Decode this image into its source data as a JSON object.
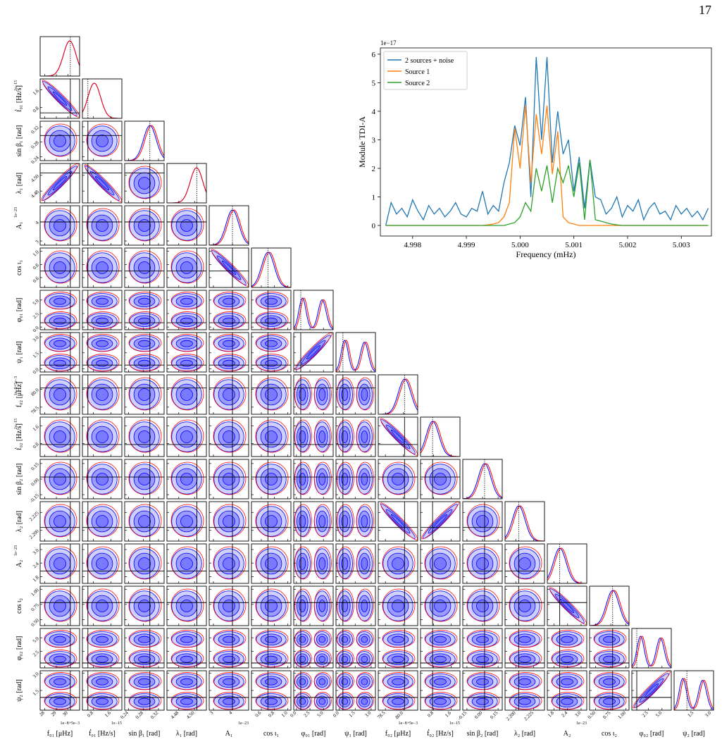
{
  "page_number": "17",
  "chart_data": [
    {
      "type": "line",
      "offset_label": "1e−17",
      "x_label": "Frequency (mHz)",
      "y_label": "Module TDI-A",
      "legend": "upper left",
      "xlim": [
        4.9974,
        5.00356
      ],
      "ylim": [
        -0.37,
        6.22
      ],
      "xticks": [
        4.998,
        4.999,
        {
          "value": 5.0,
          "label": "5.000"
        },
        5.001,
        5.002,
        5.003
      ],
      "yticks": [
        0,
        1,
        2,
        3,
        4,
        5,
        6
      ],
      "x": [
        4.9975,
        4.9976,
        4.9977,
        4.9978,
        4.9979,
        4.998,
        4.9981,
        4.9982,
        4.9983,
        4.9984,
        4.9985,
        4.9986,
        4.9987,
        4.9988,
        4.9989,
        4.999,
        4.9991,
        4.9992,
        4.9993,
        4.9994,
        4.9995,
        4.9996,
        4.9997,
        4.9998,
        4.9999,
        5.0,
        5.0001,
        5.0002,
        5.0003,
        5.0004,
        5.0005,
        5.0006,
        5.0007,
        5.0008,
        5.0009,
        5.001,
        5.0011,
        5.0012,
        5.0013,
        5.0014,
        5.0015,
        5.0016,
        5.0017,
        5.0018,
        5.0019,
        5.002,
        5.0021,
        5.0022,
        5.0023,
        5.0024,
        5.0025,
        5.0026,
        5.0027,
        5.0028,
        5.0029,
        5.003,
        5.0031,
        5.0032,
        5.0033,
        5.0034,
        5.0035
      ],
      "series": [
        {
          "name": "2 sources + noise",
          "color": "#1f77b4",
          "values": [
            0.0,
            0.8,
            0.4,
            0.6,
            0.3,
            0.9,
            0.5,
            0.2,
            0.7,
            0.4,
            0.6,
            0.3,
            0.5,
            0.8,
            0.4,
            0.3,
            0.6,
            0.5,
            1.2,
            0.4,
            0.7,
            0.5,
            1.5,
            2.2,
            3.5,
            2.8,
            4.5,
            1.0,
            5.9,
            3.0,
            5.9,
            2.2,
            4.0,
            2.5,
            3.0,
            1.2,
            2.4,
            0.6,
            2.3,
            1.0,
            0.9,
            0.4,
            0.6,
            1.0,
            0.3,
            0.7,
            0.5,
            0.9,
            0.2,
            0.6,
            0.8,
            0.4,
            0.5,
            0.2,
            0.7,
            0.4,
            0.6,
            0.3,
            0.5,
            0.2,
            0.6
          ]
        },
        {
          "name": "Source 1",
          "color": "#ff7f0e",
          "values": [
            0,
            0,
            0,
            0,
            0,
            0,
            0,
            0,
            0,
            0,
            0,
            0,
            0,
            0,
            0,
            0,
            0,
            0,
            0,
            0.02,
            0.05,
            0.1,
            0.3,
            0.8,
            3.4,
            2.0,
            4.2,
            1.5,
            3.9,
            2.5,
            4.2,
            1.8,
            3.3,
            0.3,
            0.1,
            0.05,
            0,
            0,
            0,
            0,
            0,
            0,
            0,
            0,
            0,
            0,
            0,
            0,
            0,
            0,
            0,
            0,
            0,
            0,
            0,
            0,
            0,
            0,
            0,
            0,
            0
          ]
        },
        {
          "name": "Source 2",
          "color": "#2ca02c",
          "values": [
            0,
            0,
            0,
            0,
            0,
            0,
            0,
            0,
            0,
            0,
            0,
            0,
            0,
            0,
            0,
            0,
            0,
            0,
            0,
            0,
            0,
            0,
            0,
            0.05,
            0.1,
            0.3,
            0.8,
            0.5,
            2.0,
            1.2,
            2.1,
            0.8,
            2.0,
            1.5,
            2.1,
            1.0,
            2.2,
            0.2,
            2.3,
            0.2,
            0.15,
            0.1,
            0.05,
            0.02,
            0,
            0,
            0,
            0,
            0,
            0,
            0,
            0,
            0,
            0,
            0,
            0,
            0,
            0,
            0,
            0,
            0
          ]
        }
      ]
    },
    {
      "type": "corner",
      "parameters": [
        {
          "label": "f₀₁ [μHz]",
          "lim": [
            27.6,
            31.0
          ],
          "ticks": [
            28,
            29,
            30
          ],
          "truth": 30.2,
          "offset": "1e−8+5e−3"
        },
        {
          "label": "ḟ₀₁ [Hz/s]",
          "lim": [
            0.3,
            2.1
          ],
          "ticks": [
            0.8,
            1.6
          ],
          "truth": 0.55,
          "offset": "1e−15"
        },
        {
          "label": "sin β₁ [rad]",
          "lim": [
            0.23,
            0.335
          ],
          "ticks": [
            0.24,
            0.28,
            0.32
          ],
          "truth": 0.297
        },
        {
          "label": "λ₁ [rad]",
          "lim": [
            4.465,
            4.515
          ],
          "ticks": [
            4.48,
            {
              "value": 4.5,
              "label": "4.50"
            }
          ],
          "truth": 4.503
        },
        {
          "label": "A₁",
          "lim": [
            2.78,
            4.85
          ],
          "ticks": [
            3,
            4
          ],
          "truth": 4.0,
          "offset": "1e−23"
        },
        {
          "label": "cos ι₁",
          "lim": [
            0.45,
            1.05
          ],
          "ticks": [
            0.6,
            0.8,
            {
              "value": 1.0,
              "label": "1.0"
            }
          ],
          "truth": 0.7
        },
        {
          "label": "φ₀₁ [rad]",
          "lim": [
            -0.5,
            6.8
          ],
          "ticks": [
            {
              "value": 0.0,
              "label": "0.0"
            },
            2.5,
            {
              "value": 5.0,
              "label": "5.0"
            }
          ],
          "truth": 0.8
        },
        {
          "label": "ψ₁ [rad]",
          "lim": [
            -0.3,
            3.4
          ],
          "ticks": [
            {
              "value": 0.0,
              "label": "0.0"
            },
            1.5,
            {
              "value": 3.0,
              "label": "3.0"
            }
          ],
          "truth": 0.35
        },
        {
          "label": "f₀₂ [μHz]",
          "lim": [
            77.9,
            81.2
          ],
          "ticks": [
            78.5,
            {
              "value": 80.0,
              "label": "80.0"
            }
          ],
          "truth": 80.1,
          "offset": "1e−8+5e−3"
        },
        {
          "label": "ḟ₀₂ [Hz/s]",
          "lim": [
            0.2,
            2.0
          ],
          "ticks": [
            0.8,
            1.6
          ],
          "truth": 0.75,
          "offset": "1e−15"
        },
        {
          "label": "sin β₂ [rad]",
          "lim": [
            -0.19,
            0.19
          ],
          "ticks": [
            {
              "value": -0.15,
              "label": "-0.15"
            },
            {
              "value": 0.0,
              "label": "0.00"
            },
            0.15
          ],
          "truth": 0.02
        },
        {
          "label": "λ₂ [rad]",
          "lim": [
            2.185,
            2.24
          ],
          "ticks": [
            {
              "value": 2.2,
              "label": "2.200"
            },
            2.225
          ],
          "truth": 2.204
        },
        {
          "label": "A₂",
          "lim": [
            1.5,
            3.25
          ],
          "ticks": [
            1.8,
            2.4,
            {
              "value": 3.0,
              "label": "3.0"
            }
          ],
          "truth": 2.05,
          "offset": "1e−23"
        },
        {
          "label": "cos ι₂",
          "lim": [
            0.4,
            1.05
          ],
          "ticks": [
            {
              "value": 0.5,
              "label": "0.50"
            },
            0.75,
            {
              "value": 1.0,
              "label": "1.00"
            }
          ],
          "truth": 0.78
        },
        {
          "label": "φ₀₂ [rad]",
          "lim": [
            -0.5,
            6.7
          ],
          "ticks": [
            2.5,
            {
              "value": 5.0,
              "label": "5.0"
            }
          ],
          "truth": 0.4
        },
        {
          "label": "ψ₂ [rad]",
          "lim": [
            -0.2,
            3.2
          ],
          "ticks": [
            1.5,
            {
              "value": 3.0,
              "label": "3.0"
            }
          ],
          "truth": 0.9
        }
      ]
    }
  ]
}
